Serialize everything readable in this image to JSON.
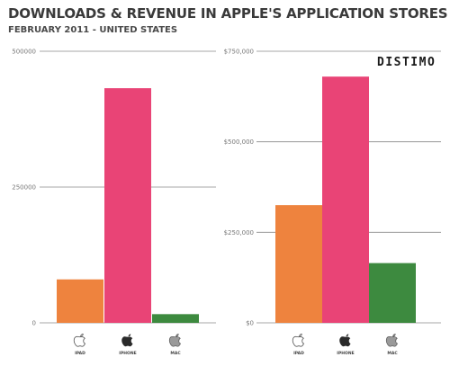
{
  "header": {
    "title": "DOWNLOADS & REVENUE IN APPLE'S APPLICATION STORES",
    "subtitle": "FEBRUARY 2011 - UNITED STATES"
  },
  "brand": "DISTIMO",
  "colors": {
    "ipad": "#ee833e",
    "iphone": "#e94476",
    "mac": "#3d8a3f"
  },
  "chart_data": [
    {
      "type": "bar",
      "categories": [
        "IPAD",
        "IPHONE",
        "MAC"
      ],
      "icons": [
        "apple-icon",
        "apple-icon",
        "apple-icon"
      ],
      "values": [
        80000,
        432000,
        16000
      ],
      "ylim": [
        0,
        500000
      ],
      "yticks": [
        0,
        250000,
        500000
      ],
      "ytick_labels": [
        "0",
        "250000",
        "500000"
      ],
      "grid": true
    },
    {
      "type": "bar",
      "categories": [
        "IPAD",
        "IPHONE",
        "MAC"
      ],
      "icons": [
        "apple-icon",
        "apple-icon",
        "apple-icon"
      ],
      "values": [
        325000,
        680000,
        165000
      ],
      "ylim": [
        0,
        750000
      ],
      "yticks": [
        0,
        250000,
        500000,
        750000
      ],
      "ytick_labels": [
        "$0",
        "$250,000",
        "$500,000",
        "$750,000"
      ],
      "grid": true
    }
  ]
}
